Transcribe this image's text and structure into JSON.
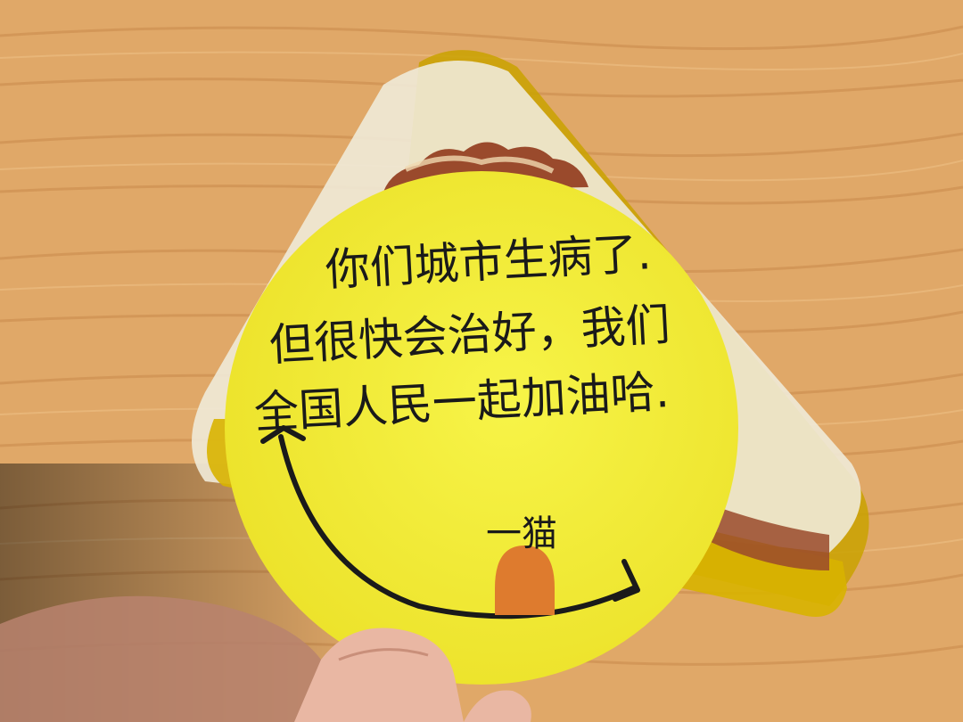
{
  "photo": {
    "colors": {
      "table_wood": "#e0a868",
      "table_grain": "#c8884a",
      "sticker_yellow": "#f4f03a",
      "tongue_orange": "#de7b2e",
      "package_clear": "#f0ead8",
      "package_gold": "#c9a200",
      "cake_brown": "#9a4a2c",
      "ink": "#1a1a1a",
      "skin": "#e9b7a3"
    },
    "note": {
      "lines": [
        "你们城市生病了.",
        "但很快会治好，我们",
        "全国人民一起加油哈."
      ],
      "signature": "一猫"
    },
    "icons": [
      "smiley-mouth-icon",
      "tongue-icon"
    ]
  }
}
